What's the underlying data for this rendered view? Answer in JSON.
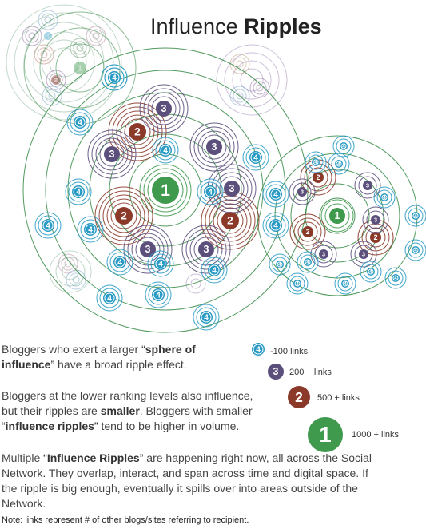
{
  "title": {
    "normal": "Influence ",
    "bold": "Ripples"
  },
  "colors": {
    "level4": "#2a9bc4",
    "level3": "#5c4f7c",
    "level2": "#8b3a2a",
    "level1": "#3f9a4e",
    "ring_green": "#3e8f4e",
    "ring_purple": "#6b4a7e",
    "ring_teal": "#2a9bc4",
    "ring_brown": "#8b3a2a"
  },
  "node_labels": {
    "l1": "1",
    "l2": "2",
    "l3": "3",
    "l4": "4"
  },
  "legend": [
    {
      "level": "4",
      "label": "-100  links"
    },
    {
      "level": "3",
      "label": "200 + links"
    },
    {
      "level": "2",
      "label": "500 + links"
    },
    {
      "level": "1",
      "label": "1000 + links"
    }
  ],
  "paragraphs": {
    "p1": {
      "a": "Bloggers who exert a larger ",
      "q1": "“",
      "b": "sphere of influence",
      "q2": "”",
      "c": " have a broad ripple effect."
    },
    "p2": {
      "a": "Bloggers at the lower ranking levels also influence, but their ripples are ",
      "b": "smaller",
      "c": ".  Bloggers with smaller ",
      "q1": "“",
      "d": "influence ripples",
      "q2": "”",
      "e": " tend to be higher in volume."
    },
    "p3": {
      "a": "Multiple ",
      "q1": "“",
      "b": "Influence Ripples",
      "q2": "”",
      "c": " are happening right now, all across the Social Network.  They overlap, interact, and span across time and digital space.  If the ripple is big enough, eventually it spills over into areas outside of the Network."
    }
  },
  "note": "Note: links represent # of other blogs/sites referring to recipient."
}
